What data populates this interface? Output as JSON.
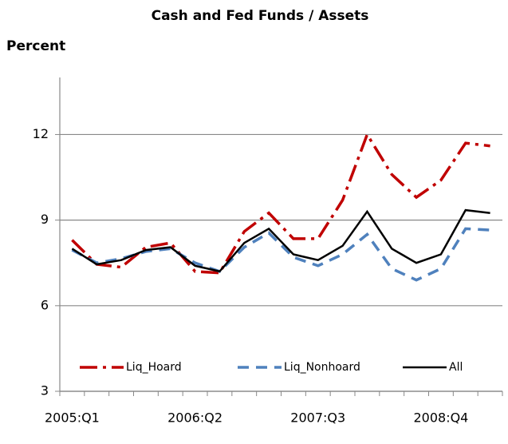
{
  "chart_data": {
    "type": "line",
    "title": "Cash and Fed Funds / Assets",
    "y_label": "Percent",
    "categories": [
      "2005:Q1",
      null,
      null,
      null,
      null,
      "2006:Q2",
      null,
      null,
      null,
      null,
      "2007:Q3",
      null,
      null,
      null,
      null,
      "2008:Q4",
      null,
      null
    ],
    "series": [
      {
        "name": "Liq_Hoard",
        "color": "#c00000",
        "dash": "dashdot",
        "values": [
          8.3,
          7.45,
          7.35,
          8.05,
          8.2,
          7.2,
          7.15,
          8.6,
          9.25,
          8.35,
          8.35,
          9.7,
          12.0,
          10.6,
          9.8,
          10.4,
          11.7,
          11.6
        ]
      },
      {
        "name": "Liq_Nonhoard",
        "color": "#4f81bd",
        "dash": "dash",
        "values": [
          7.95,
          7.5,
          7.65,
          7.9,
          8.0,
          7.5,
          7.2,
          8.05,
          8.55,
          7.7,
          7.4,
          7.8,
          8.5,
          7.3,
          6.9,
          7.3,
          8.7,
          8.65
        ]
      },
      {
        "name": "All",
        "color": "#000000",
        "dash": "solid",
        "values": [
          8.0,
          7.45,
          7.6,
          7.95,
          8.05,
          7.4,
          7.2,
          8.2,
          8.7,
          7.8,
          7.6,
          8.1,
          9.3,
          8.0,
          7.5,
          7.8,
          9.35,
          9.25
        ]
      }
    ],
    "ylim": [
      3,
      14
    ],
    "yticks": [
      3,
      6,
      9,
      12
    ],
    "grid": true,
    "legend": "bottom"
  }
}
